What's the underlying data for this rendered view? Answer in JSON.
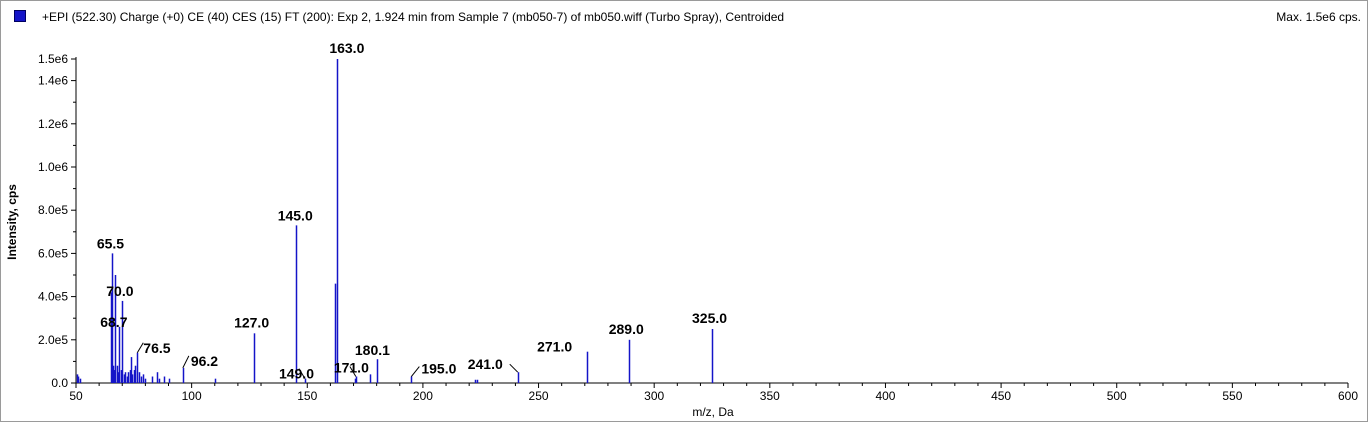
{
  "header": {
    "title": "+EPI (522.30) Charge (+0) CE (40) CES (15) FT (200): Exp 2, 1.924 min from Sample 7 (mb050-7) of mb050.wiff (Turbo Spray), Centroided",
    "max": "Max. 1.5e6 cps."
  },
  "colors": {
    "series": "#1414c8",
    "axis": "#000000"
  },
  "chart_data": {
    "type": "bar",
    "title": "+EPI (522.30) Charge (+0) CE (40) CES (15) FT (200): Exp 2, 1.924 min from Sample 7 (mb050-7) of mb050.wiff (Turbo Spray), Centroided",
    "xlabel": "m/z, Da",
    "ylabel": "Intensity, cps",
    "xlim": [
      50,
      600
    ],
    "ylim": [
      0,
      1500000
    ],
    "x_ticks": [
      50,
      100,
      150,
      200,
      250,
      300,
      350,
      400,
      450,
      500,
      550,
      600
    ],
    "y_ticks": [
      {
        "value": 0,
        "label": "0.0"
      },
      {
        "value": 200000,
        "label": "2.0e5"
      },
      {
        "value": 400000,
        "label": "4.0e5"
      },
      {
        "value": 600000,
        "label": "6.0e5"
      },
      {
        "value": 800000,
        "label": "8.0e5"
      },
      {
        "value": 1000000,
        "label": "1.0e6"
      },
      {
        "value": 1200000,
        "label": "1.2e6"
      },
      {
        "value": 1400000,
        "label": "1.4e6"
      },
      {
        "value": 1500000,
        "label": "1.5e6"
      }
    ],
    "peaks": [
      {
        "x": 50.3,
        "y": 40000
      },
      {
        "x": 51.0,
        "y": 30000
      },
      {
        "x": 51.6,
        "y": 20000
      },
      {
        "x": 65.3,
        "y": 420000
      },
      {
        "x": 65.5,
        "y": 600000
      },
      {
        "x": 66.0,
        "y": 80000
      },
      {
        "x": 66.6,
        "y": 60000
      },
      {
        "x": 67.0,
        "y": 500000
      },
      {
        "x": 67.6,
        "y": 80000
      },
      {
        "x": 68.0,
        "y": 50000
      },
      {
        "x": 68.7,
        "y": 260000
      },
      {
        "x": 69.3,
        "y": 60000
      },
      {
        "x": 70.0,
        "y": 380000
      },
      {
        "x": 70.6,
        "y": 40000
      },
      {
        "x": 71.2,
        "y": 50000
      },
      {
        "x": 72.0,
        "y": 30000
      },
      {
        "x": 72.6,
        "y": 50000
      },
      {
        "x": 73.2,
        "y": 60000
      },
      {
        "x": 73.8,
        "y": 120000
      },
      {
        "x": 74.4,
        "y": 40000
      },
      {
        "x": 75.0,
        "y": 60000
      },
      {
        "x": 75.6,
        "y": 80000
      },
      {
        "x": 76.5,
        "y": 140000
      },
      {
        "x": 77.2,
        "y": 50000
      },
      {
        "x": 78.0,
        "y": 30000
      },
      {
        "x": 79.0,
        "y": 40000
      },
      {
        "x": 80.0,
        "y": 20000
      },
      {
        "x": 83.0,
        "y": 30000
      },
      {
        "x": 85.0,
        "y": 50000
      },
      {
        "x": 86.0,
        "y": 20000
      },
      {
        "x": 88.0,
        "y": 30000
      },
      {
        "x": 90.0,
        "y": 20000
      },
      {
        "x": 96.2,
        "y": 70000
      },
      {
        "x": 110.0,
        "y": 20000
      },
      {
        "x": 127.0,
        "y": 230000
      },
      {
        "x": 145.0,
        "y": 730000
      },
      {
        "x": 149.0,
        "y": 20000
      },
      {
        "x": 162.0,
        "y": 460000
      },
      {
        "x": 163.0,
        "y": 1500000
      },
      {
        "x": 170.5,
        "y": 20000
      },
      {
        "x": 171.0,
        "y": 30000
      },
      {
        "x": 177.0,
        "y": 40000
      },
      {
        "x": 180.1,
        "y": 110000
      },
      {
        "x": 195.0,
        "y": 30000
      },
      {
        "x": 222.6,
        "y": 15000
      },
      {
        "x": 223.2,
        "y": 15000
      },
      {
        "x": 241.0,
        "y": 50000
      },
      {
        "x": 271.0,
        "y": 145000
      },
      {
        "x": 289.0,
        "y": 200000
      },
      {
        "x": 325.0,
        "y": 250000
      }
    ],
    "annotations": [
      {
        "text": "163.0",
        "x": 163.0,
        "y": 1500000
      },
      {
        "text": "145.0",
        "x": 145.0,
        "y": 730000
      },
      {
        "text": "65.5",
        "x": 65.5,
        "y": 600000
      },
      {
        "text": "70.0",
        "x": 70.0,
        "y": 380000
      },
      {
        "text": "68.7",
        "x": 68.7,
        "y": 260000
      },
      {
        "text": "76.5",
        "x": 76.5,
        "y": 140000
      },
      {
        "text": "96.2",
        "x": 96.2,
        "y": 70000
      },
      {
        "text": "127.0",
        "x": 127.0,
        "y": 230000
      },
      {
        "text": "149.0",
        "x": 149.0,
        "y": 20000
      },
      {
        "text": "171.0",
        "x": 171.0,
        "y": 30000
      },
      {
        "text": "180.1",
        "x": 180.1,
        "y": 110000
      },
      {
        "text": "195.0",
        "x": 195.0,
        "y": 30000
      },
      {
        "text": "241.0",
        "x": 241.0,
        "y": 50000
      },
      {
        "text": "271.0",
        "x": 271.0,
        "y": 145000
      },
      {
        "text": "289.0",
        "x": 289.0,
        "y": 200000
      },
      {
        "text": "325.0",
        "x": 325.0,
        "y": 250000
      }
    ]
  }
}
